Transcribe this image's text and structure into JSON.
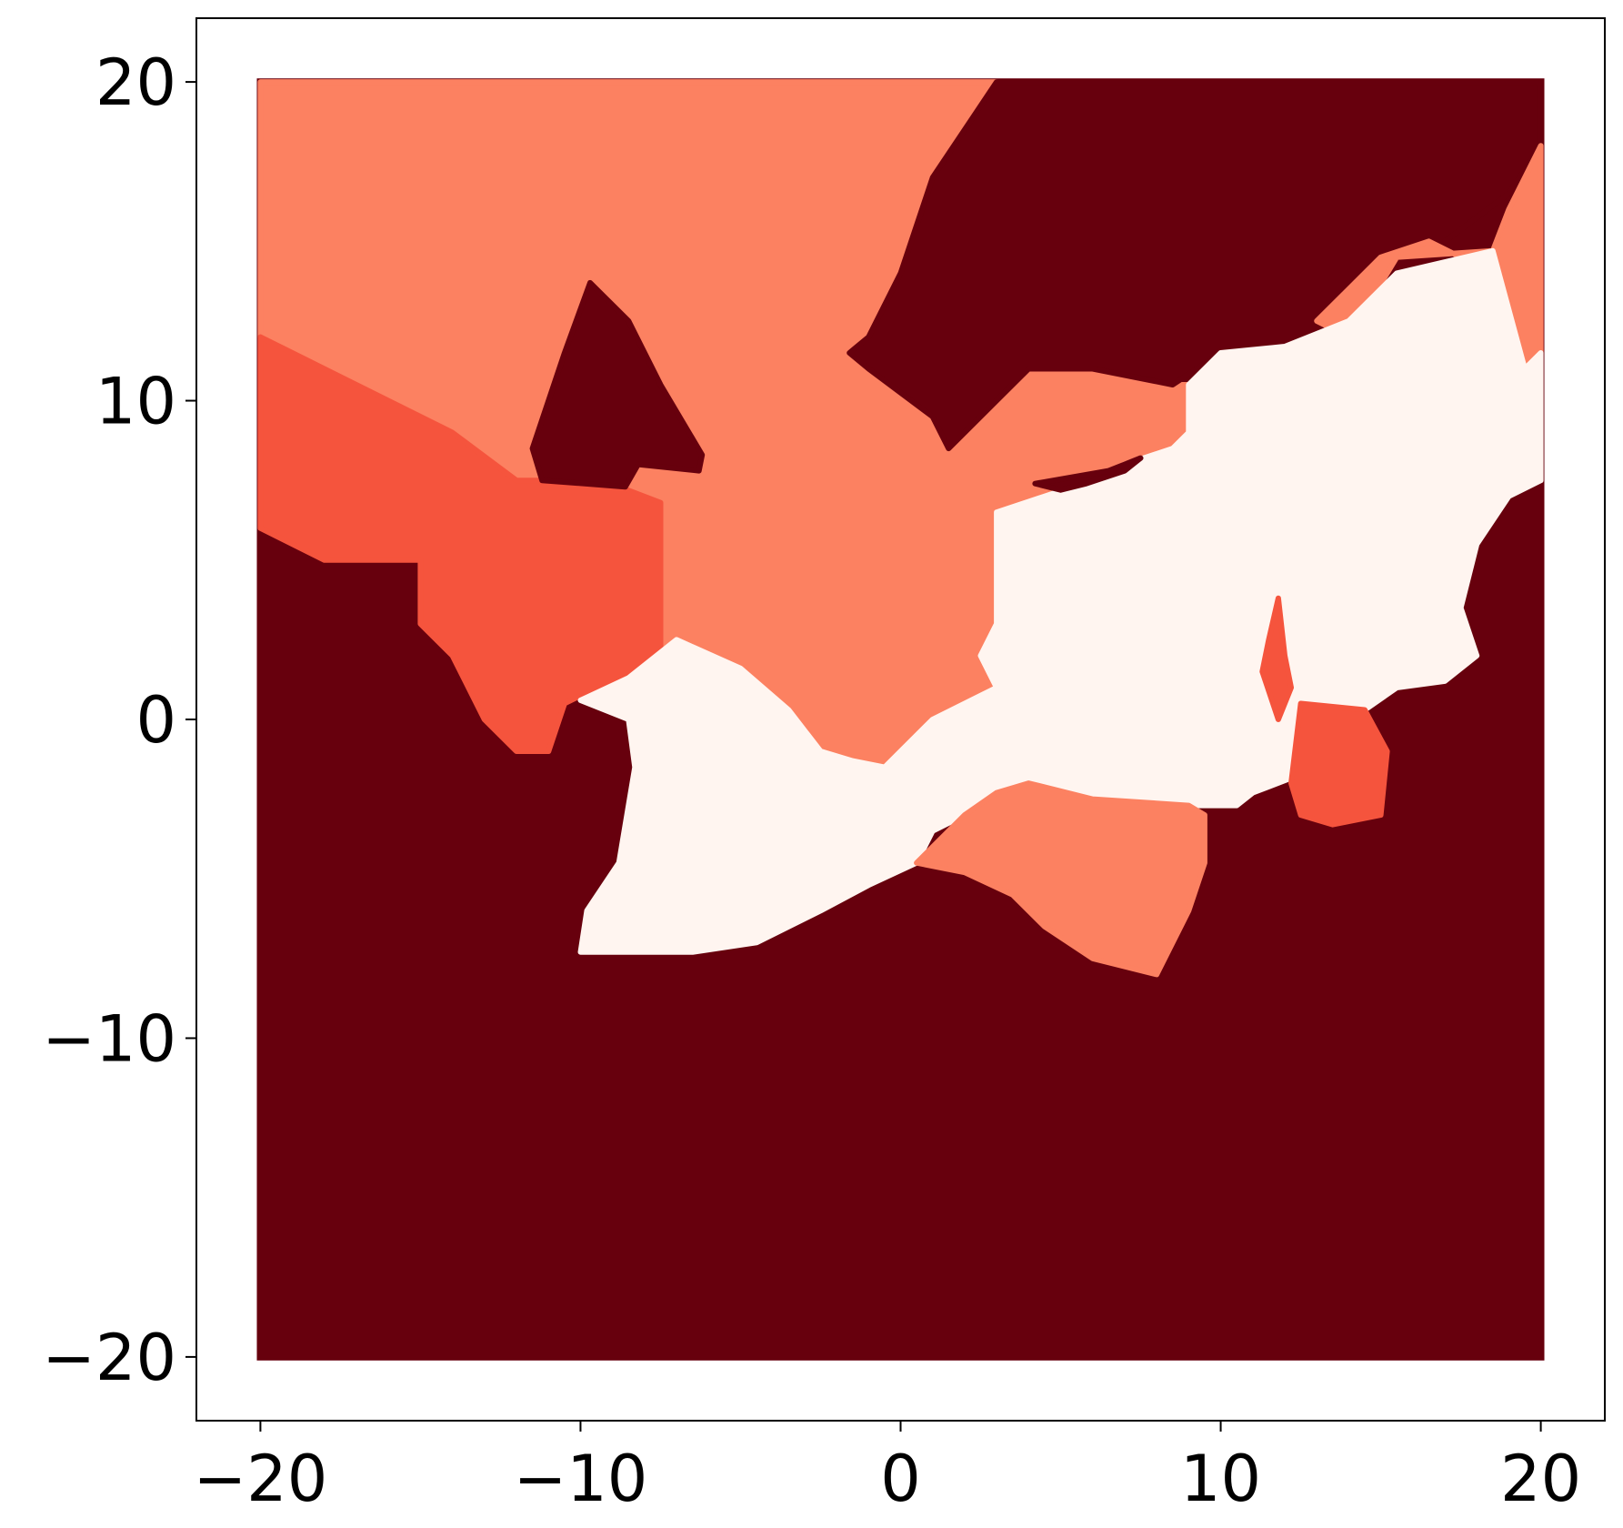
{
  "chart_data": {
    "type": "heatmap",
    "title": "",
    "xlabel": "",
    "ylabel": "",
    "xlim": [
      -22,
      22
    ],
    "ylim": [
      -22,
      22
    ],
    "grid": false,
    "legend": "none",
    "x_ticks": [
      {
        "value": -20,
        "label": "−20"
      },
      {
        "value": -10,
        "label": "−10"
      },
      {
        "value": 0,
        "label": "0"
      },
      {
        "value": 10,
        "label": "10"
      },
      {
        "value": 20,
        "label": "20"
      }
    ],
    "y_ticks": [
      {
        "value": 20,
        "label": "20"
      },
      {
        "value": 10,
        "label": "10"
      },
      {
        "value": 0,
        "label": "0"
      },
      {
        "value": -10,
        "label": "−10"
      },
      {
        "value": -20,
        "label": "−20"
      }
    ],
    "grid_extent": {
      "x": [
        -20,
        20
      ],
      "y": [
        -20,
        20
      ]
    },
    "classes": [
      {
        "id": 0,
        "color": "#67000d"
      },
      {
        "id": 1,
        "color": "#f5543d"
      },
      {
        "id": 2,
        "color": "#fc8161"
      },
      {
        "id": 3,
        "color": "#fff5f0"
      }
    ],
    "background_class": 0,
    "regions": [
      {
        "class": 2,
        "points": [
          [
            -20,
            20
          ],
          [
            3,
            20
          ],
          [
            1,
            17
          ],
          [
            0,
            14
          ],
          [
            -1,
            12
          ],
          [
            -1.6,
            11.5
          ],
          [
            -1,
            11
          ],
          [
            1,
            9.5
          ],
          [
            1.5,
            8.5
          ],
          [
            3,
            10
          ],
          [
            4,
            11
          ],
          [
            6,
            11
          ],
          [
            8,
            10.5
          ],
          [
            9,
            10.5
          ],
          [
            9,
            9
          ],
          [
            8.5,
            8.5
          ],
          [
            7,
            8
          ],
          [
            6,
            7.5
          ],
          [
            3,
            6.5
          ],
          [
            3,
            3
          ],
          [
            2.5,
            2
          ],
          [
            3,
            1
          ],
          [
            1,
            0
          ],
          [
            -0.5,
            -1.5
          ],
          [
            -1.5,
            -1.3
          ],
          [
            -2.5,
            -1
          ],
          [
            -3.5,
            0.3
          ],
          [
            -5,
            1.2
          ],
          [
            -6.5,
            1.8
          ],
          [
            -7.5,
            2
          ],
          [
            -7.5,
            6.8
          ],
          [
            -8.8,
            7.3
          ],
          [
            -10.5,
            7.5
          ],
          [
            -12,
            7.5
          ],
          [
            -14,
            9
          ],
          [
            -20,
            12
          ]
        ]
      },
      {
        "class": 1,
        "points": [
          [
            -20,
            12
          ],
          [
            -14,
            9
          ],
          [
            -12,
            7.5
          ],
          [
            -10.5,
            7.5
          ],
          [
            -8.8,
            7.3
          ],
          [
            -7.5,
            6.8
          ],
          [
            -7.5,
            2
          ],
          [
            -8,
            1.5
          ],
          [
            -9.5,
            1
          ],
          [
            -10.5,
            0.5
          ],
          [
            -11,
            -1
          ],
          [
            -12,
            -1
          ],
          [
            -13,
            0
          ],
          [
            -14,
            2
          ],
          [
            -15,
            3
          ],
          [
            -15,
            5
          ],
          [
            -18,
            5
          ],
          [
            -20,
            6
          ]
        ]
      },
      {
        "class": 0,
        "points": [
          [
            -9.7,
            13.7
          ],
          [
            -8.5,
            12.5
          ],
          [
            -7.5,
            10.5
          ],
          [
            -6.2,
            8.3
          ],
          [
            -6.3,
            7.8
          ],
          [
            -8.2,
            8
          ],
          [
            -8.6,
            7.3
          ],
          [
            -11.2,
            7.5
          ],
          [
            -11.5,
            8.5
          ],
          [
            -10.5,
            11.5
          ]
        ]
      },
      {
        "class": 0,
        "points": [
          [
            3,
            20
          ],
          [
            20,
            20
          ],
          [
            20,
            18
          ],
          [
            19,
            16.5
          ],
          [
            17,
            15
          ],
          [
            15,
            14
          ],
          [
            14,
            12.5
          ],
          [
            12,
            11.7
          ],
          [
            10,
            11.5
          ],
          [
            8.5,
            10.5
          ],
          [
            6,
            11
          ],
          [
            4,
            11
          ],
          [
            3,
            10
          ],
          [
            1.5,
            8.5
          ],
          [
            1,
            9.5
          ],
          [
            -1,
            11
          ],
          [
            -1.6,
            11.5
          ],
          [
            -1,
            12
          ],
          [
            0,
            14
          ],
          [
            1,
            17
          ]
        ]
      },
      {
        "class": 2,
        "points": [
          [
            20,
            18
          ],
          [
            20,
            11.5
          ],
          [
            19.5,
            11
          ],
          [
            18.5,
            14
          ],
          [
            16.5,
            15
          ],
          [
            15,
            14.5
          ],
          [
            14,
            13.5
          ],
          [
            13,
            12.5
          ],
          [
            14,
            12
          ],
          [
            15.5,
            14.5
          ],
          [
            18.5,
            14.7
          ],
          [
            19,
            16
          ]
        ]
      },
      {
        "class": 3,
        "points": [
          [
            -10,
            0.6
          ],
          [
            -8.5,
            1.3
          ],
          [
            -7,
            2.5
          ],
          [
            -5,
            1.6
          ],
          [
            -3.5,
            0.3
          ],
          [
            -2.5,
            -1
          ],
          [
            -1.5,
            -1.3
          ],
          [
            -0.5,
            -1.5
          ],
          [
            1,
            0
          ],
          [
            3,
            1
          ],
          [
            2.5,
            2
          ],
          [
            3,
            3
          ],
          [
            3,
            6.5
          ],
          [
            6,
            7.5
          ],
          [
            7,
            8
          ],
          [
            8.5,
            8.5
          ],
          [
            9,
            9
          ],
          [
            9,
            10.5
          ],
          [
            10,
            11.5
          ],
          [
            12,
            11.7
          ],
          [
            14,
            12.5
          ],
          [
            15.5,
            14
          ],
          [
            18.5,
            14.7
          ],
          [
            19.5,
            11
          ],
          [
            20,
            11.5
          ],
          [
            20,
            7.5
          ],
          [
            19,
            7
          ],
          [
            18,
            5.5
          ],
          [
            17.5,
            3.5
          ],
          [
            18,
            2
          ],
          [
            17,
            1.2
          ],
          [
            15.5,
            1
          ],
          [
            14.5,
            0.3
          ],
          [
            12.5,
            0.5
          ],
          [
            12.3,
            -1.8
          ],
          [
            11,
            -2.3
          ],
          [
            10.5,
            -2.7
          ],
          [
            9,
            -2.7
          ],
          [
            6,
            -2.5
          ],
          [
            4,
            -2
          ],
          [
            3,
            -2.3
          ],
          [
            2,
            -3
          ],
          [
            1,
            -3.5
          ],
          [
            0.5,
            -4.5
          ],
          [
            -1,
            -5.2
          ],
          [
            -2.5,
            -6
          ],
          [
            -4.5,
            -7
          ],
          [
            -6.5,
            -7.3
          ],
          [
            -8.5,
            -7.3
          ],
          [
            -10,
            -7.3
          ],
          [
            -9.8,
            -6
          ],
          [
            -8.8,
            -4.5
          ],
          [
            -8.3,
            -1.5
          ],
          [
            -8.5,
            0
          ]
        ]
      },
      {
        "class": 1,
        "points": [
          [
            12.2,
            -2
          ],
          [
            12.5,
            0.5
          ],
          [
            14.5,
            0.3
          ],
          [
            15.2,
            -1
          ],
          [
            15,
            -3
          ],
          [
            13.5,
            -3.3
          ],
          [
            12.5,
            -3
          ]
        ]
      },
      {
        "class": 1,
        "points": [
          [
            11.8,
            3.8
          ],
          [
            12,
            2
          ],
          [
            12.2,
            1
          ],
          [
            11.8,
            0
          ],
          [
            11.3,
            1.5
          ],
          [
            11.5,
            2.5
          ]
        ]
      },
      {
        "class": 2,
        "points": [
          [
            0.5,
            -4.5
          ],
          [
            2,
            -3
          ],
          [
            3,
            -2.3
          ],
          [
            4,
            -2
          ],
          [
            6,
            -2.5
          ],
          [
            9,
            -2.7
          ],
          [
            9.5,
            -3
          ],
          [
            9.5,
            -4.5
          ],
          [
            9,
            -6
          ],
          [
            8,
            -8
          ],
          [
            6,
            -7.5
          ],
          [
            4.5,
            -6.5
          ],
          [
            3.5,
            -5.5
          ],
          [
            2,
            -4.8
          ]
        ]
      },
      {
        "class": 0,
        "points": [
          [
            4.2,
            7.4
          ],
          [
            6.5,
            7.8
          ],
          [
            7.5,
            8.2
          ],
          [
            7,
            7.8
          ],
          [
            5.8,
            7.4
          ],
          [
            5,
            7.2
          ]
        ]
      }
    ]
  }
}
